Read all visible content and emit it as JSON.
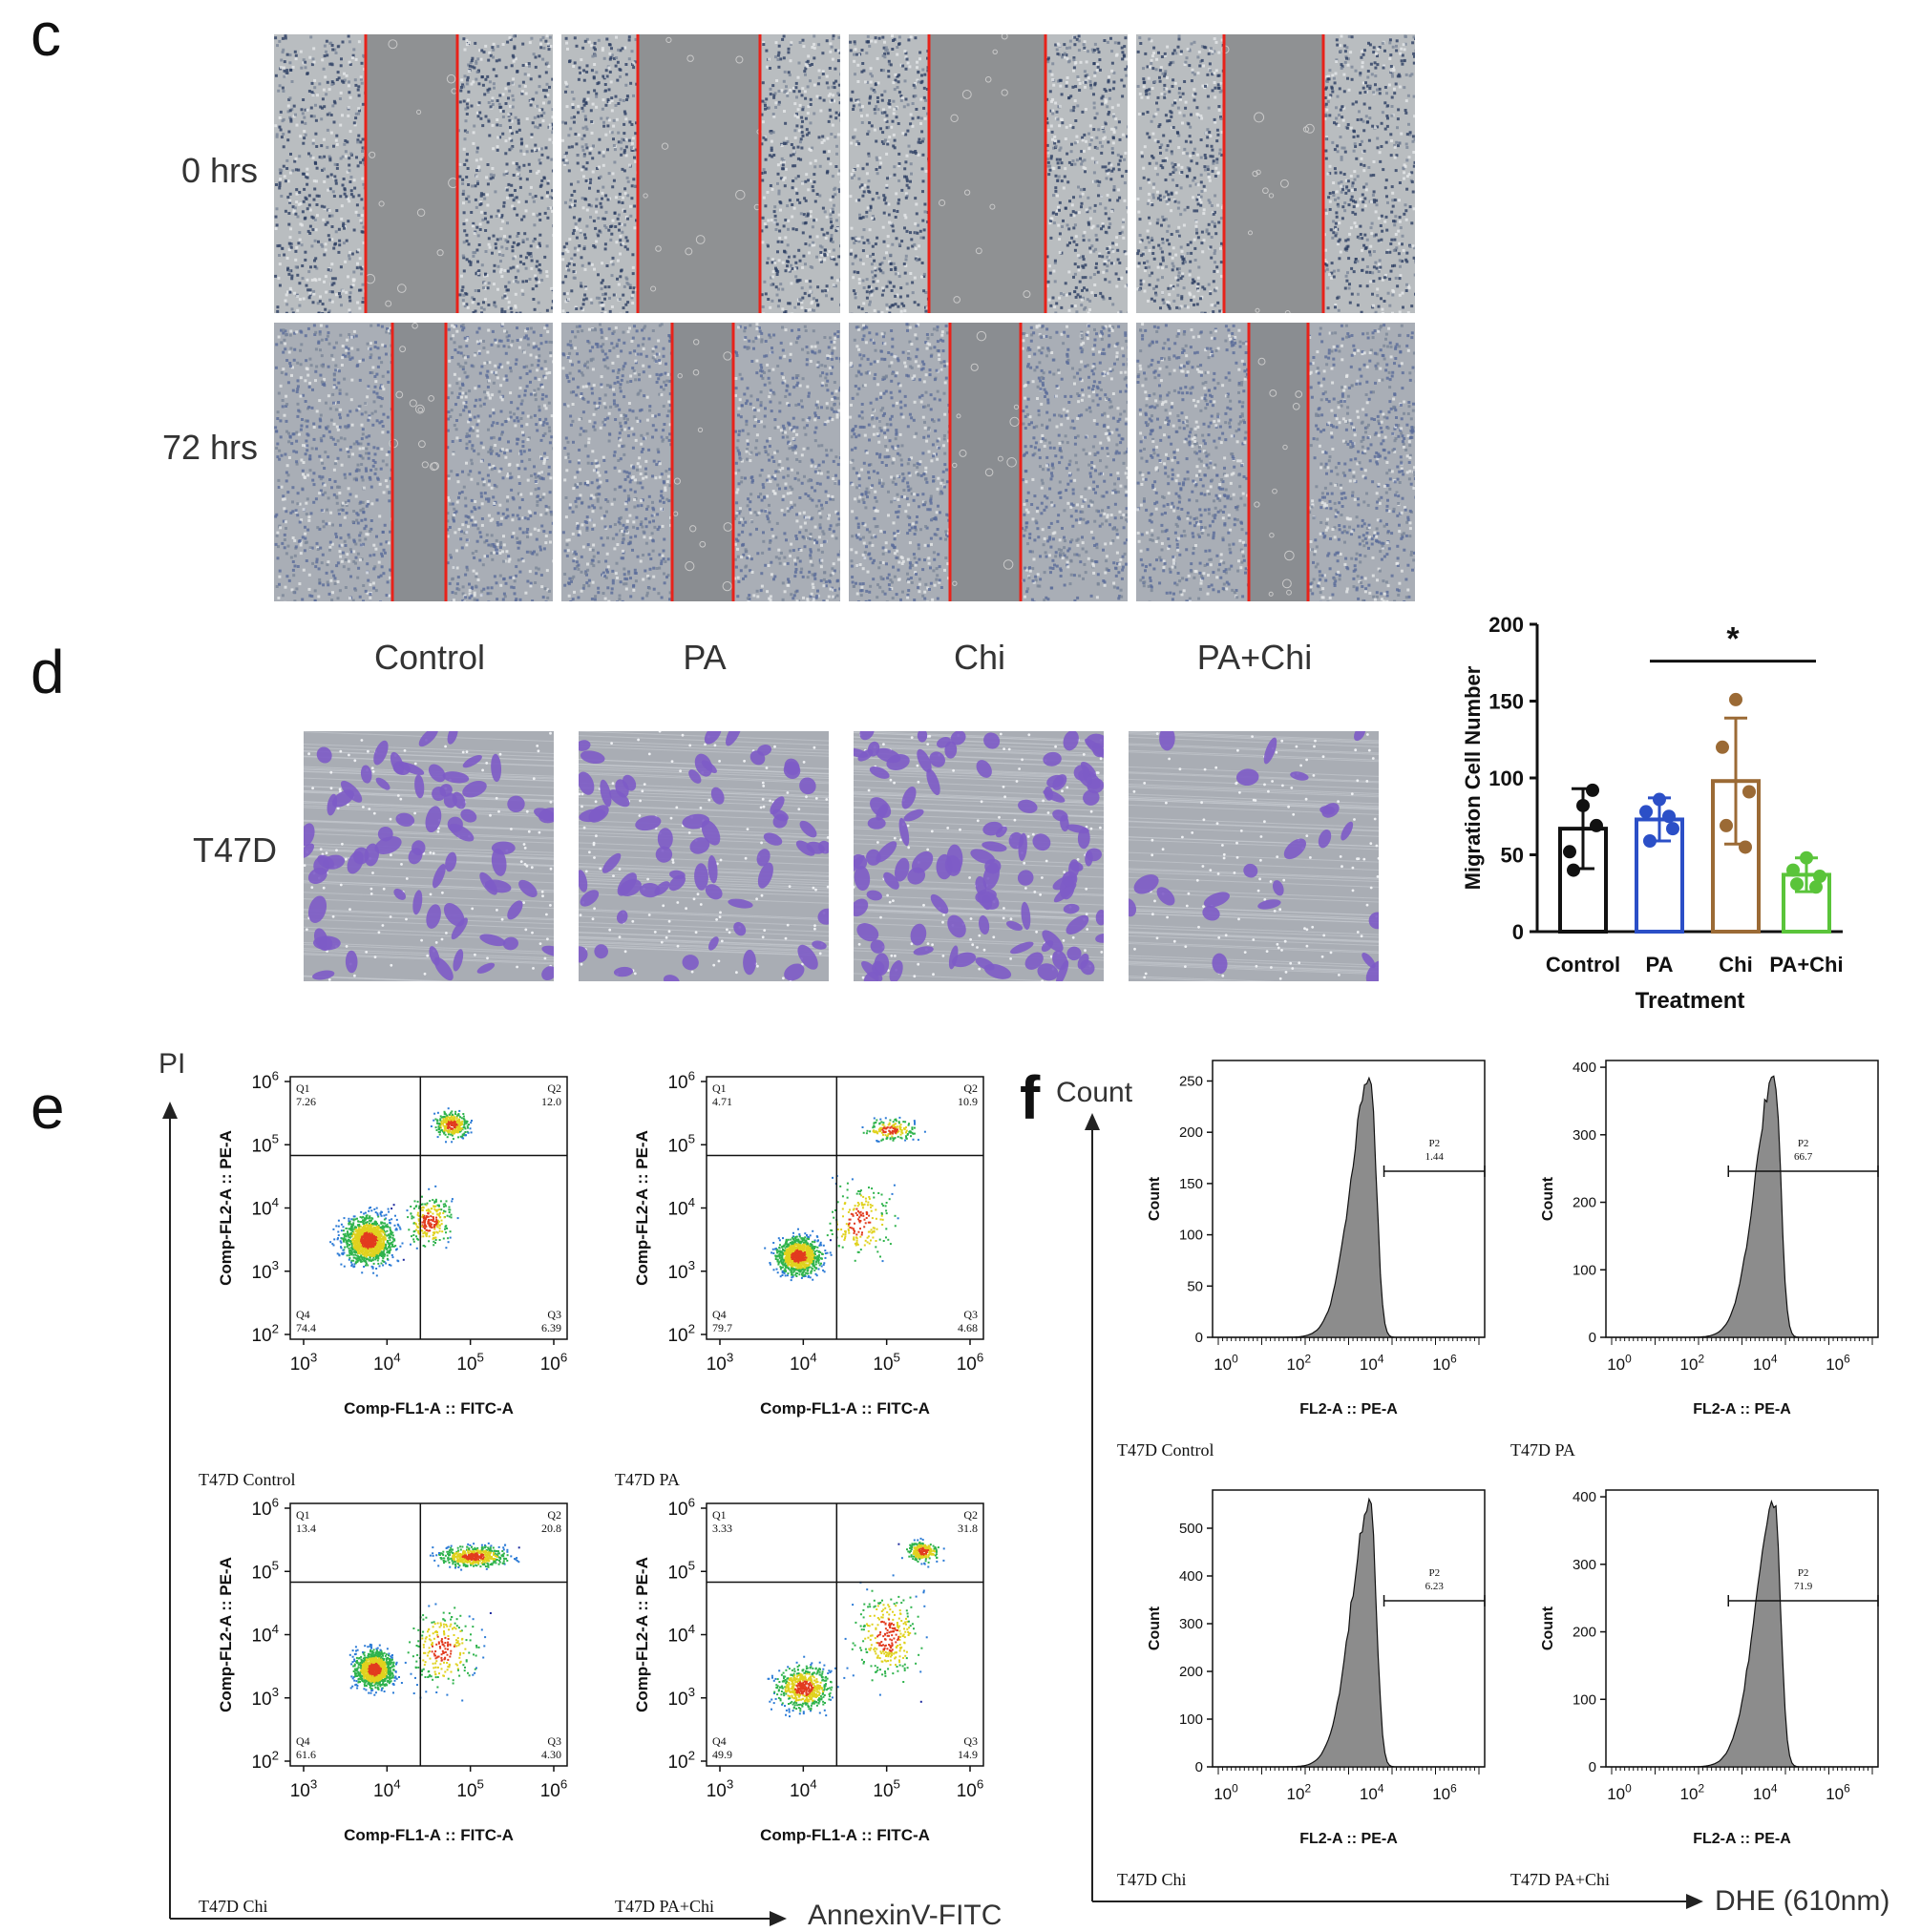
{
  "panels": {
    "c": "c",
    "d": "d",
    "e": "e",
    "f": "f"
  },
  "wound_healing": {
    "rows": [
      "0 hrs",
      "72 hrs"
    ]
  },
  "transwell": {
    "columns": [
      "Control",
      "PA",
      "Chi",
      "PA+Chi"
    ],
    "row_label": "T47D"
  },
  "chart_data": [
    {
      "type": "bar",
      "title": "",
      "xlabel": "Treatment",
      "ylabel": "Migration Cell Number",
      "ylim": [
        0,
        200
      ],
      "yticks": [
        0,
        50,
        100,
        150,
        200
      ],
      "categories": [
        "Control",
        "PA",
        "Chi",
        "PA+Chi"
      ],
      "values": [
        67,
        73,
        98,
        37
      ],
      "errors": [
        26,
        14,
        41,
        11
      ],
      "points": [
        [
          82,
          52,
          69,
          40,
          92
        ],
        [
          86,
          78,
          67,
          59,
          75
        ],
        [
          151,
          120,
          91,
          69,
          55
        ],
        [
          48,
          40,
          36,
          31,
          29
        ]
      ],
      "colors": [
        "#111111",
        "#2b4fc7",
        "#9b6a35",
        "#5ac43a"
      ],
      "significance": {
        "from": 1,
        "to": 3,
        "label": "*"
      }
    }
  ],
  "flow_apoptosis": {
    "x_axis_label": "AnnexinV-FITC",
    "y_axis_label": "PI",
    "plot_xlabel": "Comp-FL1-A :: FITC-A",
    "plot_ylabel": "Comp-FL2-A :: PE-A",
    "x_ticks": [
      "10^3",
      "10^4",
      "10^5",
      "10^6"
    ],
    "y_ticks": [
      "10^2",
      "10^3",
      "10^4",
      "10^5",
      "10^6"
    ],
    "plots": [
      {
        "caption": "T47D Control",
        "q1": "Q1",
        "q1v": "7.26",
        "q2": "Q2",
        "q2v": "12.0",
        "q3": "Q3",
        "q3v": "6.39",
        "q4": "Q4",
        "q4v": "74.4"
      },
      {
        "caption": "T47D PA",
        "q1": "Q1",
        "q1v": "4.71",
        "q2": "Q2",
        "q2v": "10.9",
        "q3": "Q3",
        "q3v": "4.68",
        "q4": "Q4",
        "q4v": "79.7"
      },
      {
        "caption": "T47D Chi",
        "q1": "Q1",
        "q1v": "13.4",
        "q2": "Q2",
        "q2v": "20.8",
        "q3": "Q3",
        "q3v": "4.30",
        "q4": "Q4",
        "q4v": "61.6"
      },
      {
        "caption": "T47D PA+Chi",
        "q1": "Q1",
        "q1v": "3.33",
        "q2": "Q2",
        "q2v": "31.8",
        "q3": "Q3",
        "q3v": "14.9",
        "q4": "Q4",
        "q4v": "49.9"
      }
    ]
  },
  "flow_dhe": {
    "x_axis_label": "DHE (610nm)",
    "y_axis_label": "Count",
    "plot_xlabel": "FL2-A :: PE-A",
    "plot_ylabel": "Count",
    "x_ticks": [
      "10^0",
      "10^2",
      "10^4",
      "10^6"
    ],
    "plots": [
      {
        "caption": "T47D Control",
        "gate": "P2",
        "gate_value": "1.44",
        "yticks": [
          "0",
          "50",
          "100",
          "150",
          "200",
          "250"
        ],
        "ymax": 270
      },
      {
        "caption": "T47D PA",
        "gate": "P2",
        "gate_value": "66.7",
        "yticks": [
          "0",
          "100",
          "200",
          "300",
          "400"
        ],
        "ymax": 410
      },
      {
        "caption": "T47D Chi",
        "gate": "P2",
        "gate_value": "6.23",
        "yticks": [
          "0",
          "100",
          "200",
          "300",
          "400",
          "500"
        ],
        "ymax": 580
      },
      {
        "caption": "T47D PA+Chi",
        "gate": "P2",
        "gate_value": "71.9",
        "yticks": [
          "0",
          "100",
          "200",
          "300",
          "400"
        ],
        "ymax": 410
      }
    ]
  }
}
